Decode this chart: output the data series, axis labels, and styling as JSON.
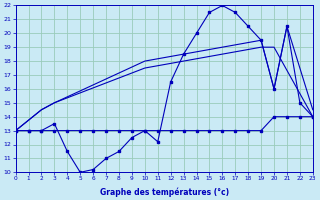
{
  "xlabel": "Graphe des températures (°c)",
  "bg_color": "#caeaf5",
  "line_color": "#0000bb",
  "grid_color": "#99ccbb",
  "x_min": 0,
  "x_max": 23,
  "y_min": 10,
  "y_max": 22,
  "line1_x": [
    0,
    1,
    2,
    3,
    4,
    5,
    6,
    7,
    8,
    9,
    10,
    11,
    12,
    13,
    14,
    15,
    16,
    17,
    18,
    19,
    20,
    21,
    22,
    23
  ],
  "line1_y": [
    13,
    13,
    13,
    13,
    13,
    13,
    13,
    13,
    13,
    13,
    13,
    13,
    13,
    13,
    13,
    13,
    13,
    13,
    13,
    13,
    14,
    14,
    14,
    14
  ],
  "line2_x": [
    0,
    2,
    3,
    10,
    19,
    20,
    23
  ],
  "line2_y": [
    13,
    14.5,
    15,
    17.5,
    19,
    19,
    14
  ],
  "line3_x": [
    0,
    1,
    2,
    3,
    4,
    5,
    6,
    7,
    8,
    9,
    10,
    11,
    12,
    13,
    14,
    15,
    16,
    17,
    18,
    19,
    20,
    21,
    22,
    23
  ],
  "line3_y": [
    13,
    13,
    13,
    13.5,
    11.5,
    10,
    10.2,
    11,
    11.5,
    12.5,
    13,
    12.2,
    16.5,
    18.5,
    20,
    21.5,
    22,
    21.5,
    20.5,
    19.5,
    16,
    20.5,
    15,
    14
  ],
  "line4_x": [
    0,
    2,
    3,
    10,
    19,
    20,
    21,
    23
  ],
  "line4_y": [
    13,
    14.5,
    15,
    18,
    19.5,
    16,
    20.5,
    14.5
  ]
}
